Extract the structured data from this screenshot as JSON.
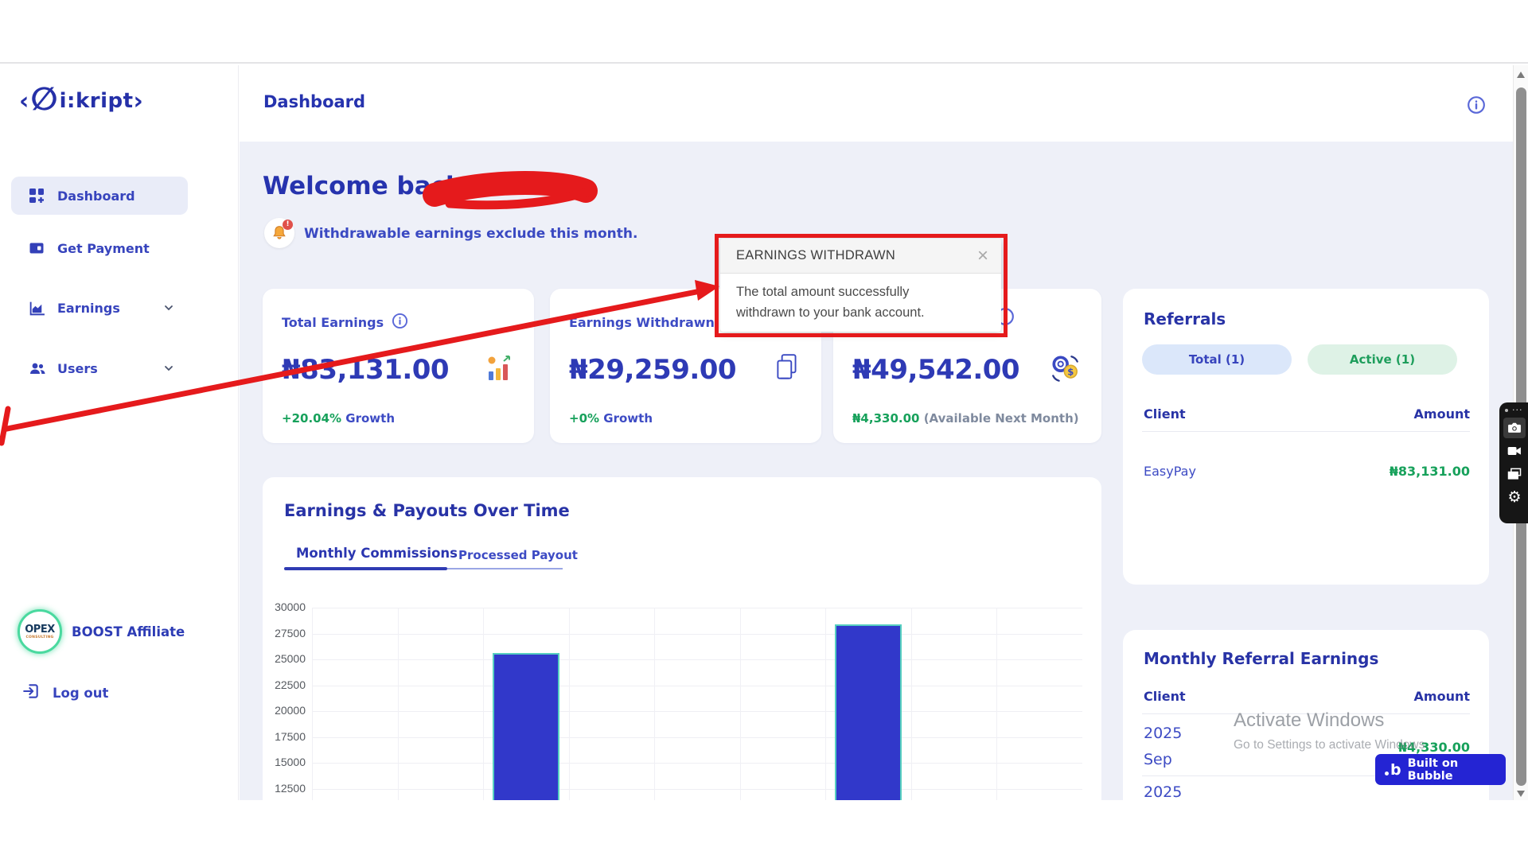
{
  "header": {
    "title": "Dashboard"
  },
  "sidebar": {
    "logo": {
      "open_bracket": "‹",
      "symbol": "∅",
      "name": "i:kript",
      "close_bracket": "›"
    },
    "items": [
      {
        "label": "Dashboard"
      },
      {
        "label": "Get Payment"
      },
      {
        "label": "Earnings"
      },
      {
        "label": "Users"
      }
    ],
    "affiliate": {
      "circle_text": "OPEX",
      "circle_subtext": "CONSULTING",
      "label": "BOOST Affiliate"
    },
    "logout": "Log out"
  },
  "welcome": {
    "greeting": "Welcome back,",
    "name_redacted_by_marker": true
  },
  "notice": "Withdrawable earnings exclude this month.",
  "cards": [
    {
      "title": "Total Earnings",
      "value": "₦83,131.00",
      "growth_value": "+20.04%",
      "growth_label": "Growth"
    },
    {
      "title": "Earnings Withdrawn",
      "value": "₦29,259.00",
      "growth_value": "+0%",
      "growth_label": "Growth"
    },
    {
      "value": "₦49,542.00",
      "note_value": "₦4,330.00",
      "note_label": "(Available Next Month)"
    }
  ],
  "tooltip": {
    "title": "EARNINGS WITHDRAWN",
    "close": "×",
    "line1": "The total amount successfully",
    "line2": "withdrawn to your bank account."
  },
  "chart_data": {
    "type": "bar",
    "title": "Earnings & Payouts Over Time",
    "tabs": [
      "Monthly Commissions",
      "Processed Payout"
    ],
    "active_tab": "Monthly Commissions",
    "y_ticks": [
      30000,
      27500,
      25000,
      22500,
      20000,
      17500,
      15000,
      12500
    ],
    "y_max": 30000,
    "y_tick_step": 2500,
    "grid": true,
    "legend": "none",
    "columns_visible": 9,
    "x_labels_visible": false,
    "bars": [
      {
        "column_index": 2,
        "value": 25600
      },
      {
        "column_index": 6,
        "value": 28400
      }
    ]
  },
  "referrals": {
    "title": "Referrals",
    "pill_total": "Total (1)",
    "pill_active": "Active (1)",
    "col_client": "Client",
    "col_amount": "Amount",
    "rows": [
      {
        "client": "EasyPay",
        "amount": "₦83,131.00"
      }
    ]
  },
  "monthly": {
    "title": "Monthly Referral Earnings",
    "col_client": "Client",
    "col_amount": "Amount",
    "rows": [
      {
        "client_line1": "2025",
        "client_line2": "Sep",
        "amount": "₦4,330.00"
      },
      {
        "client_line1": "2025"
      }
    ]
  },
  "watermark": {
    "line1": "Activate Windows",
    "line2": "Go to Settings to activate Windows"
  },
  "bubble": {
    "logo": "b",
    "label": "Built on Bubble"
  },
  "recorder": {
    "ellipsis": "···",
    "gear": "⚙"
  },
  "colors": {
    "heading_indigo": "#2833a6",
    "accent_indigo": "#2f3bb3",
    "menu_indigo": "#3744bd",
    "green": "#17a15b",
    "bar_fill": "#3138ca",
    "bar_border": "#56cfc0",
    "annotation_red": "#e51a1c",
    "bubble_blue": "#2424d3",
    "content_bg": "#eef0f8",
    "pill_blue_bg": "#dbe7fa",
    "pill_green_bg": "#def2e6"
  }
}
